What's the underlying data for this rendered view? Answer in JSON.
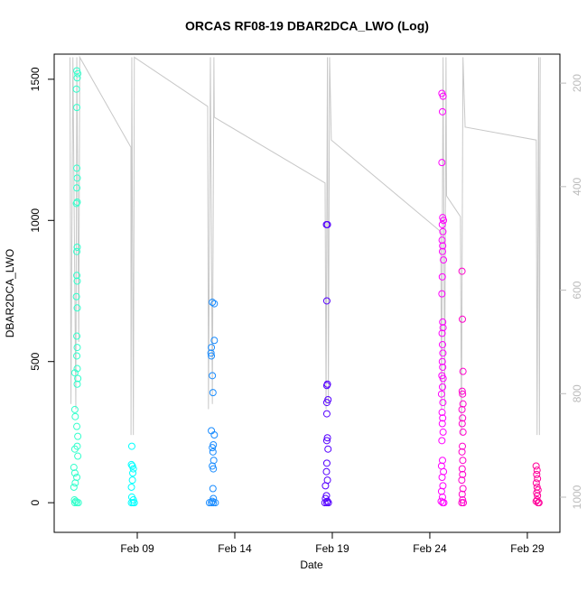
{
  "chart_data": {
    "type": "scatter",
    "title": "ORCAS RF08-19 DBAR2DCA_LWO (Log)",
    "x_label": "Date",
    "y_label": "DBAR2DCA_LWO",
    "xlim": [
      4.74,
      30.67
    ],
    "ylim": [
      -105,
      1589
    ],
    "y2lim": [
      1068,
      144
    ],
    "xticks": [
      {
        "value": 9,
        "label": "Feb 09"
      },
      {
        "value": 14,
        "label": "Feb 14"
      },
      {
        "value": 19,
        "label": "Feb 19"
      },
      {
        "value": 24,
        "label": "Feb 24"
      },
      {
        "value": 29,
        "label": "Feb 29"
      }
    ],
    "yticks": [
      0,
      500,
      1000,
      1500
    ],
    "y2ticks": [
      200,
      400,
      600,
      800,
      1000
    ],
    "series": [
      {
        "color": "#33ffcc",
        "x": [
          5.9,
          5.95,
          5.92,
          5.88,
          5.9,
          5.9,
          5.92,
          5.9,
          5.92,
          5.88,
          5.92,
          5.9,
          5.9,
          5.92,
          5.88,
          5.92,
          5.9,
          5.92,
          5.9,
          5.92,
          5.8,
          5.95,
          5.92,
          5.8,
          5.82,
          5.9,
          5.95,
          5.92,
          5.8,
          5.95,
          5.75,
          5.8,
          5.9,
          5.82,
          5.75,
          5.78,
          5.85,
          5.8,
          5.9,
          5.98
        ],
        "values": [
          1530,
          1520,
          1505,
          1465,
          1400,
          1185,
          1150,
          1115,
          1065,
          1060,
          905,
          890,
          805,
          785,
          730,
          690,
          590,
          550,
          520,
          475,
          460,
          440,
          420,
          330,
          305,
          270,
          235,
          200,
          190,
          165,
          125,
          105,
          90,
          70,
          55,
          10,
          5,
          0,
          0,
          0
        ]
      },
      {
        "color": "#00ffff",
        "x": [
          8.72,
          8.7,
          8.75,
          8.8,
          8.77,
          8.75,
          8.7,
          8.72,
          8.8,
          8.7,
          8.78,
          8.85
        ],
        "values": [
          200,
          135,
          130,
          120,
          105,
          80,
          55,
          20,
          10,
          0,
          0,
          0
        ]
      },
      {
        "color": "#1a8cff",
        "x": [
          12.85,
          12.95,
          12.95,
          12.8,
          12.78,
          12.8,
          12.85,
          12.88,
          12.8,
          12.95,
          12.9,
          12.85,
          12.88,
          12.92,
          12.85,
          12.9,
          12.88,
          12.9,
          12.85,
          12.7,
          12.8,
          12.9,
          13.0
        ],
        "values": [
          710,
          705,
          575,
          550,
          530,
          520,
          450,
          390,
          255,
          240,
          205,
          195,
          180,
          150,
          130,
          120,
          50,
          15,
          5,
          0,
          0,
          0,
          0
        ]
      },
      {
        "color": "#5500ff",
        "x": [
          18.7,
          18.75,
          18.72,
          18.75,
          18.72,
          18.78,
          18.72,
          18.72,
          18.75,
          18.72,
          18.78,
          18.72,
          18.7,
          18.75,
          18.65,
          18.7,
          18.65,
          18.75,
          18.62,
          18.72,
          18.8
        ],
        "values": [
          985,
          985,
          715,
          420,
          415,
          365,
          355,
          315,
          230,
          220,
          190,
          140,
          110,
          80,
          60,
          25,
          15,
          5,
          0,
          0,
          0
        ]
      },
      {
        "color": "#ff00ff",
        "x": [
          24.62,
          24.68,
          24.65,
          24.62,
          24.66,
          24.7,
          24.64,
          24.67,
          24.63,
          24.66,
          24.65,
          24.7,
          24.64,
          24.62,
          24.66,
          24.68,
          24.63,
          24.65,
          24.67,
          24.64,
          24.66,
          24.62,
          24.68,
          24.65,
          24.6,
          24.67,
          24.63,
          24.66,
          24.64,
          24.68,
          24.62,
          24.65,
          24.6,
          24.7,
          24.63,
          24.67,
          24.6,
          24.65,
          24.58,
          24.66,
          24.72
        ],
        "values": [
          1450,
          1440,
          1385,
          1205,
          1010,
          1000,
          985,
          960,
          930,
          910,
          890,
          860,
          800,
          740,
          640,
          620,
          600,
          560,
          530,
          500,
          480,
          450,
          440,
          410,
          385,
          355,
          320,
          300,
          280,
          250,
          220,
          150,
          130,
          110,
          90,
          60,
          40,
          20,
          5,
          0,
          0
        ]
      },
      {
        "color": "#ff00cc",
        "x": [
          25.65,
          25.67,
          25.7,
          25.66,
          25.68,
          25.7,
          25.65,
          25.68,
          25.66,
          25.7,
          25.67,
          25.65,
          25.69,
          25.66,
          25.68,
          25.64,
          25.7,
          25.66,
          25.68,
          25.64,
          25.72
        ],
        "values": [
          820,
          650,
          465,
          395,
          385,
          350,
          330,
          300,
          280,
          250,
          200,
          180,
          150,
          120,
          100,
          80,
          50,
          30,
          10,
          0,
          0
        ]
      },
      {
        "color": "#ff0099",
        "x": [
          29.45,
          29.5,
          29.48,
          29.52,
          29.46,
          29.5,
          29.55,
          29.48,
          29.52,
          29.5,
          29.45,
          29.55,
          29.6
        ],
        "values": [
          130,
          115,
          100,
          85,
          70,
          55,
          45,
          35,
          25,
          10,
          5,
          0,
          0
        ]
      },
      {
        "color": "#c8c8c8",
        "axis": "y2",
        "x": [
          5.55,
          5.6,
          5.7,
          5.85,
          5.9,
          6.0,
          6.05,
          8.675,
          8.68,
          8.72,
          8.8,
          8.85,
          12.61,
          12.65,
          12.75,
          12.85,
          12.93,
          12.95,
          18.63,
          18.68,
          18.75,
          18.8,
          18.86,
          18.95,
          24.56,
          24.6,
          24.68,
          24.76,
          24.83,
          24.86,
          25.57,
          25.62,
          25.7,
          25.81,
          29.46,
          29.5,
          29.58,
          29.62,
          29.66
        ],
        "values": [
          150,
          820,
          150,
          830,
          150,
          700,
          150,
          324,
          880,
          150,
          880,
          150,
          245,
          830,
          150,
          820,
          150,
          266,
          393,
          830,
          150,
          820,
          150,
          310,
          487,
          830,
          150,
          830,
          150,
          418,
          458,
          880,
          150,
          285,
          310,
          880,
          150,
          880,
          150
        ]
      }
    ]
  }
}
